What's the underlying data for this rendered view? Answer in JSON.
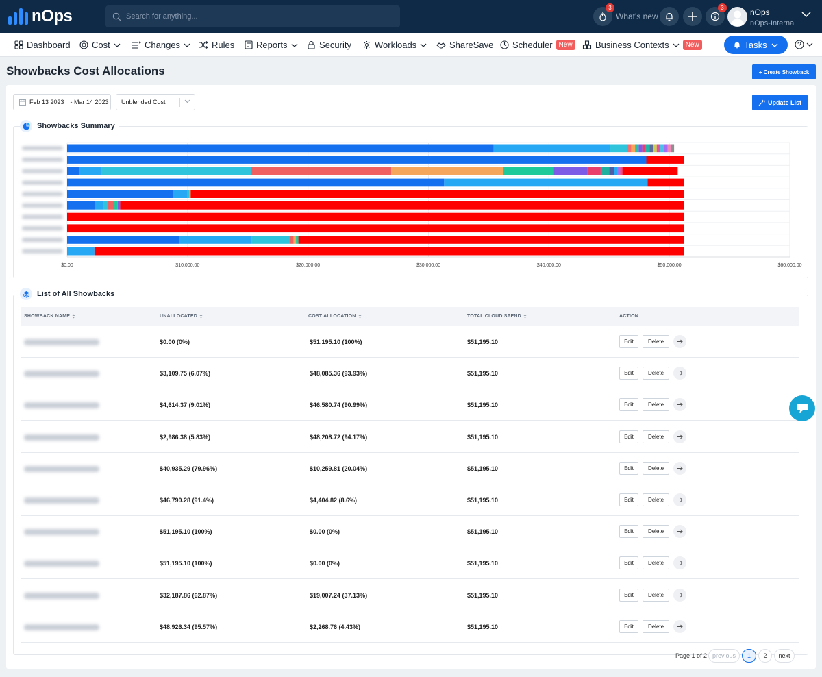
{
  "brand": {
    "logo_text": "nOps"
  },
  "header": {
    "search_placeholder": "Search for anything...",
    "whats_new_label": "What's new",
    "fire_badge": "3",
    "info_badge": "3",
    "user_name": "nOps",
    "user_org": "nOps-Internal"
  },
  "nav": {
    "items": [
      {
        "label": "Dashboard",
        "icon": "grid-icon"
      },
      {
        "label": "Cost",
        "icon": "coin-icon"
      },
      {
        "label": "Changes",
        "icon": "list-icon"
      },
      {
        "label": "Rules",
        "icon": "shuffle-icon"
      },
      {
        "label": "Reports",
        "icon": "document-icon"
      },
      {
        "label": "Security",
        "icon": "lock-icon"
      },
      {
        "label": "Workloads",
        "icon": "gear-icon"
      },
      {
        "label": "ShareSave",
        "icon": "handshake-icon"
      },
      {
        "label": "Scheduler",
        "icon": "clock-icon"
      },
      {
        "label": "Business Contexts",
        "icon": "cubes-icon"
      }
    ],
    "new_label": "New",
    "tasks_label": "Tasks"
  },
  "page": {
    "title": "Showbacks Cost Allocations",
    "create_button": "+ Create Showback",
    "date_start": "Feb 13 2023",
    "date_end": "- Mar 14 2023",
    "cost_type": "Unblended Cost",
    "update_button": "Update List",
    "summary_title": "Showbacks Summary",
    "list_title": "List of All Showbacks"
  },
  "chart_data": {
    "type": "bar",
    "orientation": "horizontal",
    "stacked": true,
    "xlim": [
      0,
      60000
    ],
    "x_ticks": [
      "$0.00",
      "$10,000.00",
      "$20,000.00",
      "$30,000.00",
      "$40,000.00",
      "$50,000.00",
      "$60,000.00"
    ],
    "grid": true,
    "rows": [
      {
        "segments": [
          [
            35400,
            "#1570ef"
          ],
          [
            9700,
            "#27a8f5"
          ],
          [
            1400,
            "#2fc4dc"
          ],
          [
            350,
            "#f07070"
          ],
          [
            300,
            "#f5a65b"
          ],
          [
            300,
            "#26c6a0"
          ],
          [
            300,
            "#7c5ce6"
          ],
          [
            300,
            "#e93d6c"
          ],
          [
            300,
            "#1fb5a8"
          ],
          [
            300,
            "#5b6b9a"
          ],
          [
            300,
            "#c8d050"
          ],
          [
            300,
            "#e64e9a"
          ],
          [
            300,
            "#4ec0e8"
          ],
          [
            300,
            "#a56ef2"
          ],
          [
            300,
            "#f28ab8"
          ],
          [
            245,
            "#8f8f8f"
          ]
        ]
      },
      {
        "segments": [
          [
            48085,
            "#1570ef"
          ],
          [
            3110,
            "#ff0000"
          ]
        ]
      },
      {
        "segments": [
          [
            1000,
            "#1570ef"
          ],
          [
            1800,
            "#27a8f5"
          ],
          [
            12500,
            "#2fc4dc"
          ],
          [
            11600,
            "#f06060"
          ],
          [
            9300,
            "#f5a65b"
          ],
          [
            4200,
            "#1ec99a"
          ],
          [
            2800,
            "#7c5ce6"
          ],
          [
            1100,
            "#e93d6c"
          ],
          [
            700,
            "#20b0a0"
          ],
          [
            400,
            "#4e5ba6"
          ],
          [
            300,
            "#27a8f5"
          ],
          [
            200,
            "#a56ef2"
          ],
          [
            200,
            "#e64e9a"
          ],
          [
            4595,
            "#ff0000"
          ]
        ]
      },
      {
        "segments": [
          [
            31300,
            "#1570ef"
          ],
          [
            16900,
            "#27a8f5"
          ],
          [
            2995,
            "#ff0000"
          ]
        ]
      },
      {
        "segments": [
          [
            8800,
            "#1570ef"
          ],
          [
            1200,
            "#27a8f5"
          ],
          [
            150,
            "#2fc4dc"
          ],
          [
            110,
            "#f5a65b"
          ],
          [
            40935,
            "#ff0000"
          ]
        ]
      },
      {
        "segments": [
          [
            2300,
            "#1570ef"
          ],
          [
            700,
            "#27a8f5"
          ],
          [
            400,
            "#2fc4dc"
          ],
          [
            500,
            "#f06060"
          ],
          [
            300,
            "#1ec99a"
          ],
          [
            200,
            "#7c5ce6"
          ],
          [
            46795,
            "#ff0000"
          ]
        ]
      },
      {
        "segments": [
          [
            51195,
            "#ff0000"
          ]
        ]
      },
      {
        "segments": [
          [
            51195,
            "#ff0000"
          ]
        ]
      },
      {
        "segments": [
          [
            9300,
            "#1570ef"
          ],
          [
            6000,
            "#27a8f5"
          ],
          [
            3200,
            "#2fc4dc"
          ],
          [
            300,
            "#f06060"
          ],
          [
            200,
            "#f5a65b"
          ],
          [
            200,
            "#1ec99a"
          ],
          [
            31995,
            "#ff0000"
          ]
        ]
      },
      {
        "segments": [
          [
            2268,
            "#27a8f5"
          ],
          [
            48927,
            "#ff0000"
          ]
        ]
      }
    ]
  },
  "table": {
    "headers": [
      "SHOWBACK NAME",
      "UNALLOCATED",
      "COST ALLOCATION",
      "TOTAL CLOUD SPEND",
      "ACTION"
    ],
    "edit_label": "Edit",
    "delete_label": "Delete",
    "rows": [
      {
        "unallocated": "$0.00 (0%)",
        "allocation": "$51,195.10 (100%)",
        "total": "$51,195.10"
      },
      {
        "unallocated": "$3,109.75 (6.07%)",
        "allocation": "$48,085.36 (93.93%)",
        "total": "$51,195.10"
      },
      {
        "unallocated": "$4,614.37 (9.01%)",
        "allocation": "$46,580.74 (90.99%)",
        "total": "$51,195.10"
      },
      {
        "unallocated": "$2,986.38 (5.83%)",
        "allocation": "$48,208.72 (94.17%)",
        "total": "$51,195.10"
      },
      {
        "unallocated": "$40,935.29 (79.96%)",
        "allocation": "$10,259.81 (20.04%)",
        "total": "$51,195.10"
      },
      {
        "unallocated": "$46,790.28 (91.4%)",
        "allocation": "$4,404.82 (8.6%)",
        "total": "$51,195.10"
      },
      {
        "unallocated": "$51,195.10 (100%)",
        "allocation": "$0.00 (0%)",
        "total": "$51,195.10"
      },
      {
        "unallocated": "$51,195.10 (100%)",
        "allocation": "$0.00 (0%)",
        "total": "$51,195.10"
      },
      {
        "unallocated": "$32,187.86 (62.87%)",
        "allocation": "$19,007.24 (37.13%)",
        "total": "$51,195.10"
      },
      {
        "unallocated": "$48,926.34 (95.57%)",
        "allocation": "$2,268.76 (4.43%)",
        "total": "$51,195.10"
      }
    ]
  },
  "pagination": {
    "summary": "Page 1 of 2",
    "previous": "previous",
    "pages": [
      "1",
      "2"
    ],
    "next": "next",
    "current": "1"
  }
}
